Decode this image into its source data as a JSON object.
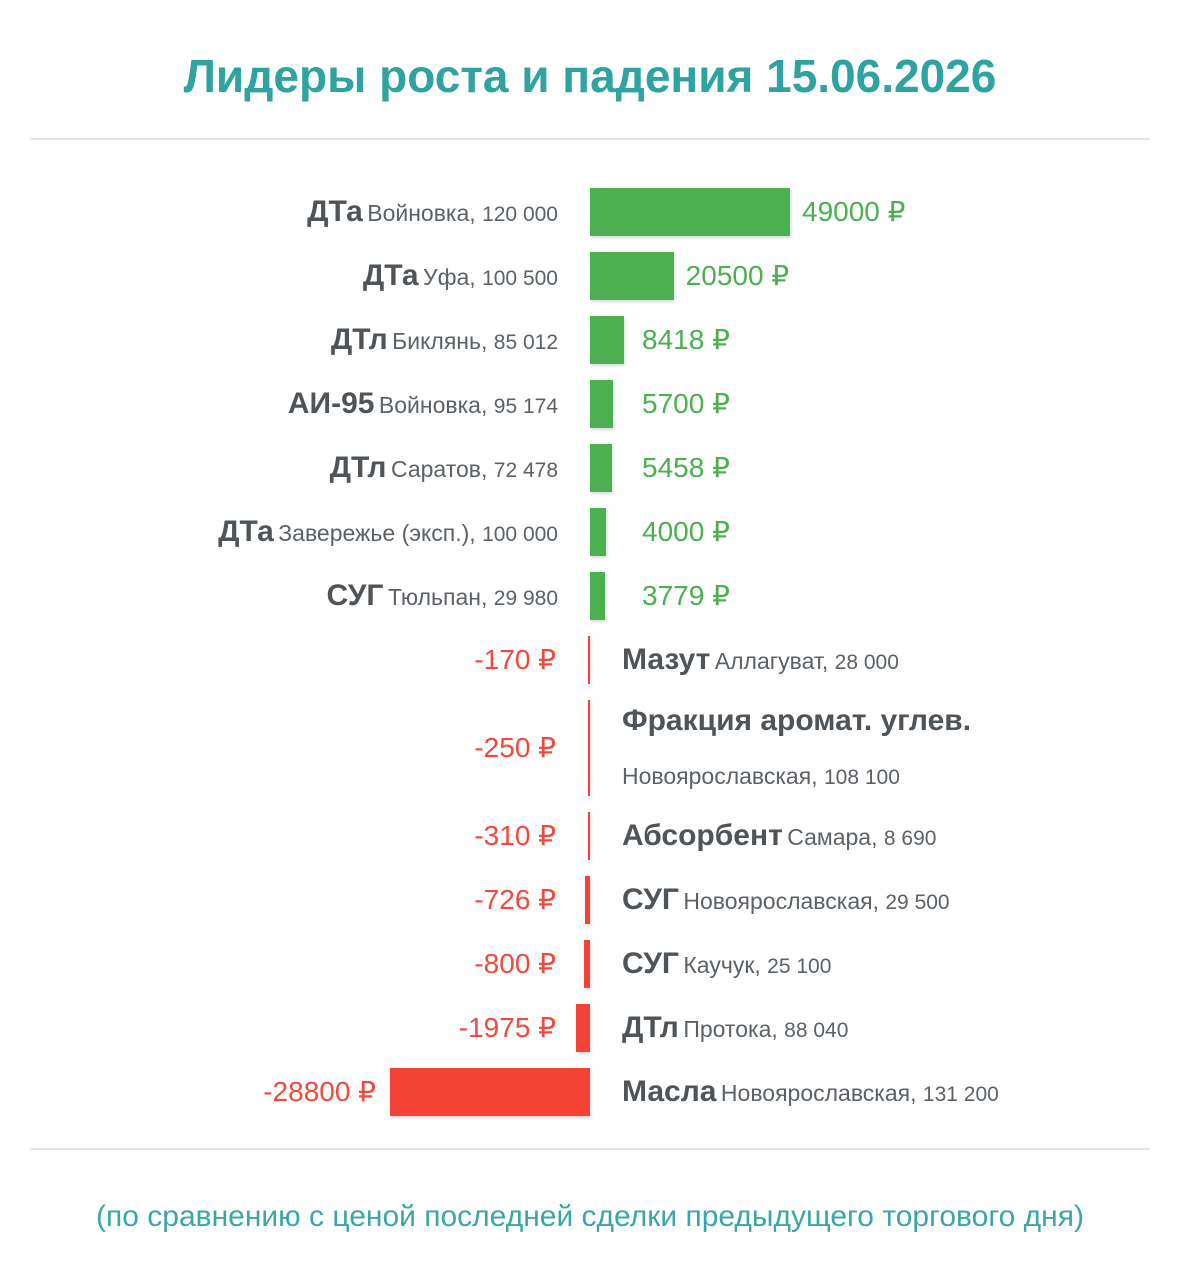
{
  "title": "Лидеры роста и падения 15.06.2026",
  "footer": "(по сравнению с ценой последней сделки предыдущего торгового дня)",
  "colors": {
    "positive": "#4caf50",
    "negative": "#f44336",
    "accent": "#2ea3a0"
  },
  "chart_data": {
    "type": "bar",
    "orientation": "horizontal",
    "unit": "₽",
    "rows": [
      {
        "product": "ДТа",
        "location": "Войновка",
        "volume": "120 000",
        "value": 49000,
        "value_label": "49000 ₽"
      },
      {
        "product": "ДТа",
        "location": "Уфа",
        "volume": "100 500",
        "value": 20500,
        "value_label": "20500 ₽"
      },
      {
        "product": "ДТл",
        "location": "Биклянь",
        "volume": "85 012",
        "value": 8418,
        "value_label": "8418 ₽"
      },
      {
        "product": "АИ-95",
        "location": "Войновка",
        "volume": "95 174",
        "value": 5700,
        "value_label": "5700 ₽"
      },
      {
        "product": "ДТл",
        "location": "Саратов",
        "volume": "72 478",
        "value": 5458,
        "value_label": "5458 ₽"
      },
      {
        "product": "ДТа",
        "location": "Завережье (эксп.)",
        "volume": "100 000",
        "value": 4000,
        "value_label": "4000 ₽"
      },
      {
        "product": "СУГ",
        "location": "Тюльпан",
        "volume": "29 980",
        "value": 3779,
        "value_label": "3779 ₽"
      },
      {
        "product": "Мазут",
        "location": "Аллагуват",
        "volume": "28 000",
        "value": -170,
        "value_label": "-170 ₽"
      },
      {
        "product": "Фракция аромат. углев.",
        "location": "Новоярославская",
        "volume": "108 100",
        "value": -250,
        "value_label": "-250 ₽"
      },
      {
        "product": "Абсорбент",
        "location": "Самара",
        "volume": "8 690",
        "value": -310,
        "value_label": "-310 ₽"
      },
      {
        "product": "СУГ",
        "location": "Новоярославская",
        "volume": "29 500",
        "value": -726,
        "value_label": "-726 ₽"
      },
      {
        "product": "СУГ",
        "location": "Каучук",
        "volume": "25 100",
        "value": -800,
        "value_label": "-800 ₽"
      },
      {
        "product": "ДТл",
        "location": "Протока",
        "volume": "88 040",
        "value": -1975,
        "value_label": "-1975 ₽"
      },
      {
        "product": "Масла",
        "location": "Новоярославская",
        "volume": "131 200",
        "value": -28800,
        "value_label": "-28800 ₽"
      }
    ]
  }
}
